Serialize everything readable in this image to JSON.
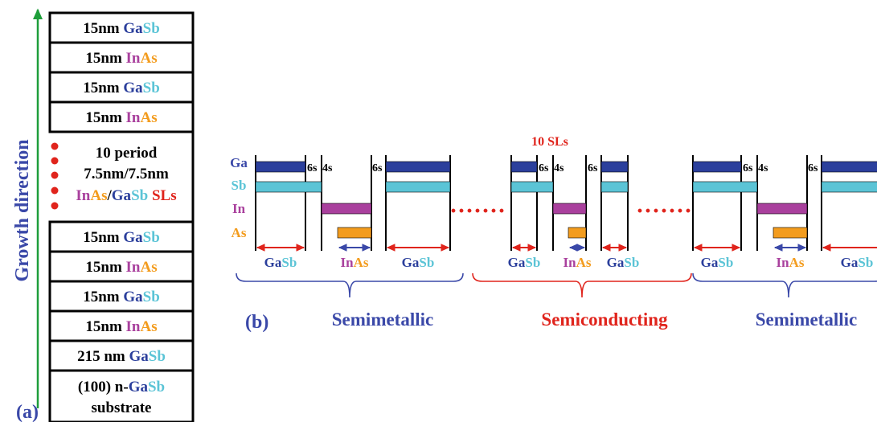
{
  "colors": {
    "ga": "#2b3f9c",
    "sb": "#5bc4d6",
    "in": "#a9409d",
    "as": "#f39c1e",
    "red": "#e0241c",
    "blue": "#3a48a8",
    "green": "#1e9e3a",
    "black": "#000000"
  },
  "panel_a": {
    "label": "(a)",
    "axis_label": "Growth direction",
    "layers": [
      [
        {
          "t": "15nm ",
          "c": "black"
        },
        {
          "t": "Ga",
          "c": "ga"
        },
        {
          "t": "Sb",
          "c": "sb"
        }
      ],
      [
        {
          "t": "15nm ",
          "c": "black"
        },
        {
          "t": "In",
          "c": "in"
        },
        {
          "t": "As",
          "c": "as"
        }
      ],
      [
        {
          "t": "15nm ",
          "c": "black"
        },
        {
          "t": "Ga",
          "c": "ga"
        },
        {
          "t": "Sb",
          "c": "sb"
        }
      ],
      [
        {
          "t": "15nm ",
          "c": "black"
        },
        {
          "t": "In",
          "c": "in"
        },
        {
          "t": "As",
          "c": "as"
        }
      ],
      [
        {
          "t": "10 period",
          "c": "black"
        }
      ],
      [
        {
          "t": "7.5nm/7.5nm",
          "c": "black"
        }
      ],
      [
        {
          "t": "In",
          "c": "in"
        },
        {
          "t": "As",
          "c": "as"
        },
        {
          "t": "/",
          "c": "black"
        },
        {
          "t": "Ga",
          "c": "ga"
        },
        {
          "t": "Sb",
          "c": "sb"
        },
        {
          "t": " SLs",
          "c": "red"
        }
      ],
      [
        {
          "t": "15nm ",
          "c": "black"
        },
        {
          "t": "Ga",
          "c": "ga"
        },
        {
          "t": "Sb",
          "c": "sb"
        }
      ],
      [
        {
          "t": "15nm ",
          "c": "black"
        },
        {
          "t": "In",
          "c": "in"
        },
        {
          "t": "As",
          "c": "as"
        }
      ],
      [
        {
          "t": "15nm ",
          "c": "black"
        },
        {
          "t": "Ga",
          "c": "ga"
        },
        {
          "t": "Sb",
          "c": "sb"
        }
      ],
      [
        {
          "t": "15nm ",
          "c": "black"
        },
        {
          "t": "In",
          "c": "in"
        },
        {
          "t": "As",
          "c": "as"
        }
      ],
      [
        {
          "t": "215 nm ",
          "c": "black"
        },
        {
          "t": "Ga",
          "c": "ga"
        },
        {
          "t": "Sb",
          "c": "sb"
        }
      ],
      [
        {
          "t": "(100) n-",
          "c": "black"
        },
        {
          "t": "Ga",
          "c": "ga"
        },
        {
          "t": "Sb",
          "c": "sb"
        }
      ],
      [
        {
          "t": "substrate",
          "c": "black"
        }
      ]
    ]
  },
  "panel_b": {
    "label": "(b)",
    "row_labels": [
      "Ga",
      "Sb",
      "In",
      "As"
    ],
    "sl_label": "10 SLs",
    "width_labels": [
      "6s",
      "4s"
    ],
    "materials": {
      "gasb": [
        "Ga",
        "Sb"
      ],
      "inas": [
        "In",
        "As"
      ]
    },
    "ellipsis": "·······",
    "regions": [
      "Semimetallic",
      "Semiconducting",
      "Semimetallic"
    ]
  }
}
